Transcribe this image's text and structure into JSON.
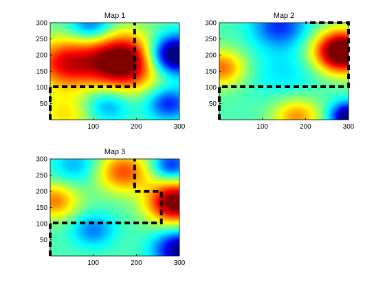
{
  "colors": {
    "background": "#ffffff",
    "boundary": "#000000",
    "colormap": "jet"
  },
  "chart_data": [
    {
      "type": "heatmap",
      "title": "Map 1",
      "xlim": [
        0,
        300
      ],
      "ylim": [
        0,
        300
      ],
      "xticks": [
        100,
        200,
        300
      ],
      "yticks": [
        50,
        100,
        150,
        200,
        250,
        300
      ],
      "blobs": [
        {
          "x": 170,
          "y": 180,
          "s": 60,
          "a": 0.65
        },
        {
          "x": 35,
          "y": 175,
          "s": 55,
          "a": 0.42
        },
        {
          "x": 130,
          "y": 45,
          "s": 38,
          "a": -0.2
        },
        {
          "x": 35,
          "y": 15,
          "s": 50,
          "a": 0.2
        },
        {
          "x": 285,
          "y": 200,
          "s": 42,
          "a": -0.6
        },
        {
          "x": 275,
          "y": 50,
          "s": 35,
          "a": -0.3
        },
        {
          "x": 95,
          "y": 290,
          "s": 35,
          "a": -0.25
        }
      ],
      "boundary": [
        [
          [
            0,
            0
          ],
          [
            0,
            102
          ],
          [
            196,
            102
          ],
          [
            196,
            300
          ]
        ]
      ]
    },
    {
      "type": "heatmap",
      "title": "Map 2",
      "xlim": [
        0,
        300
      ],
      "ylim": [
        0,
        300
      ],
      "xticks": [
        100,
        200,
        300
      ],
      "yticks": [
        50,
        100,
        150,
        200,
        250,
        300
      ],
      "blobs": [
        {
          "x": 285,
          "y": 210,
          "s": 45,
          "a": 0.72
        },
        {
          "x": 5,
          "y": 160,
          "s": 40,
          "a": 0.32
        },
        {
          "x": 180,
          "y": 10,
          "s": 40,
          "a": 0.28
        },
        {
          "x": 140,
          "y": 290,
          "s": 45,
          "a": -0.28
        },
        {
          "x": 300,
          "y": 10,
          "s": 30,
          "a": -0.5
        },
        {
          "x": 150,
          "y": 150,
          "s": 60,
          "a": -0.1
        }
      ],
      "boundary": [
        [
          [
            0,
            0
          ],
          [
            0,
            102
          ],
          [
            300,
            102
          ],
          [
            300,
            300
          ],
          [
            200,
            300
          ]
        ]
      ]
    },
    {
      "type": "heatmap",
      "title": "Map 3",
      "xlim": [
        0,
        300
      ],
      "ylim": [
        0,
        300
      ],
      "xticks": [
        100,
        200,
        300
      ],
      "yticks": [
        50,
        100,
        150,
        200,
        250,
        300
      ],
      "blobs": [
        {
          "x": 290,
          "y": 165,
          "s": 45,
          "a": 0.6
        },
        {
          "x": 170,
          "y": 260,
          "s": 45,
          "a": 0.35
        },
        {
          "x": 10,
          "y": 170,
          "s": 40,
          "a": 0.3
        },
        {
          "x": 100,
          "y": 80,
          "s": 35,
          "a": -0.2
        },
        {
          "x": 300,
          "y": 20,
          "s": 40,
          "a": -0.45
        },
        {
          "x": 280,
          "y": 280,
          "s": 30,
          "a": -0.3
        },
        {
          "x": 60,
          "y": 280,
          "s": 40,
          "a": -0.15
        }
      ],
      "boundary": [
        [
          [
            0,
            0
          ],
          [
            0,
            102
          ],
          [
            258,
            102
          ],
          [
            258,
            200
          ],
          [
            196,
            200
          ],
          [
            196,
            300
          ]
        ]
      ]
    }
  ]
}
